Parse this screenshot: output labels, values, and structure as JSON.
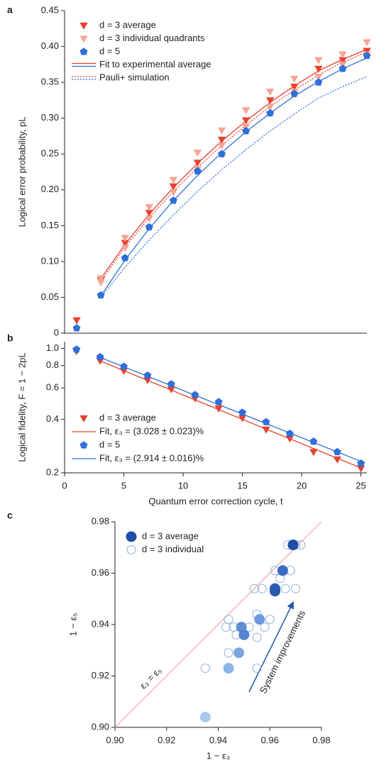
{
  "chart_data": [
    {
      "type": "line",
      "panel": "a",
      "ylabel": "Logical error probability, pL",
      "x": [
        1,
        3,
        5,
        7,
        9,
        11,
        13,
        15,
        17,
        19,
        21,
        23,
        25
      ],
      "xlim": [
        0,
        25
      ],
      "ylim": [
        0,
        0.45
      ],
      "yticks": [
        0,
        0.05,
        {
          "value": 0.1,
          "label": "0.10"
        },
        0.15,
        {
          "value": 0.2,
          "label": "0.20"
        },
        0.25,
        {
          "value": 0.3,
          "label": "0.30"
        },
        0.35,
        {
          "value": 0.4,
          "label": "0.40"
        },
        0.45
      ],
      "legend": "upper left",
      "series": [
        {
          "name": "d = 3 average",
          "color": "#e8402f",
          "marker": "triangle",
          "values": [
            0.018,
            0.074,
            0.126,
            0.168,
            0.205,
            0.238,
            0.27,
            0.297,
            0.325,
            0.344,
            0.369,
            0.381,
            0.394
          ]
        },
        {
          "name": "d = 3 individual quadrants",
          "color": "#f4a594",
          "marker": "triangle",
          "x": [
            3,
            3,
            5,
            5,
            7,
            7,
            9,
            9,
            11,
            11,
            13,
            13,
            15,
            15,
            17,
            17,
            19,
            19,
            21,
            21,
            23,
            23,
            25,
            25
          ],
          "values": [
            0.077,
            0.071,
            0.133,
            0.119,
            0.176,
            0.16,
            0.214,
            0.197,
            0.252,
            0.229,
            0.283,
            0.262,
            0.311,
            0.288,
            0.337,
            0.316,
            0.355,
            0.337,
            0.381,
            0.358,
            0.389,
            0.375,
            0.406,
            0.389
          ]
        },
        {
          "name": "d = 5",
          "color": "#2f6fd8",
          "marker": "pentagon",
          "values": [
            0.007,
            0.053,
            0.105,
            0.148,
            0.185,
            0.226,
            0.25,
            0.282,
            0.307,
            0.334,
            0.35,
            0.369,
            0.387
          ]
        }
      ],
      "fits": [
        {
          "name": "Fit to experimental average",
          "line_style": "solid",
          "x": [
            3,
            5,
            7,
            9,
            11,
            13,
            15,
            17,
            19,
            21,
            23,
            25
          ],
          "lines": [
            {
              "color": "#e8402f",
              "values": [
                0.076,
                0.124,
                0.166,
                0.203,
                0.237,
                0.268,
                0.296,
                0.322,
                0.345,
                0.366,
                0.382,
                0.396
              ]
            },
            {
              "color": "#2f6fd8",
              "values": [
                0.052,
                0.102,
                0.146,
                0.185,
                0.22,
                0.252,
                0.281,
                0.307,
                0.331,
                0.351,
                0.369,
                0.384
              ]
            }
          ]
        },
        {
          "name": "Pauli+ simulation",
          "line_style": "dotted",
          "x": [
            3,
            5,
            7,
            9,
            11,
            13,
            15,
            17,
            19,
            21,
            23,
            25
          ],
          "lines": [
            {
              "color": "#e8402f",
              "values": [
                0.072,
                0.12,
                0.161,
                0.198,
                0.231,
                0.262,
                0.29,
                0.316,
                0.339,
                0.36,
                0.378,
                0.392
              ]
            },
            {
              "color": "#2f6fd8",
              "values": [
                0.05,
                0.092,
                0.13,
                0.165,
                0.198,
                0.228,
                0.256,
                0.282,
                0.306,
                0.328,
                0.344,
                0.358
              ]
            }
          ]
        }
      ]
    },
    {
      "type": "line",
      "panel": "b",
      "ylabel": "Logical fidelity, F = 1 − 2pL",
      "xlabel": "Quantum error correction cycle, t",
      "x": [
        1,
        3,
        5,
        7,
        9,
        11,
        13,
        15,
        17,
        19,
        21,
        23,
        25
      ],
      "xlim": [
        0,
        25.5
      ],
      "xticks": [
        0,
        5,
        10,
        15,
        20,
        25
      ],
      "ylim": [
        0.2,
        1.09
      ],
      "log_y": true,
      "yticks": [
        0.2,
        0.4,
        0.6,
        0.8,
        {
          "value": 1.0,
          "label": "1.0"
        }
      ],
      "legend": "lower left",
      "series": [
        {
          "name": "d = 3 average",
          "color": "#e8402f",
          "marker": "triangle",
          "values": [
            0.964,
            0.852,
            0.748,
            0.664,
            0.59,
            0.524,
            0.46,
            0.406,
            0.35,
            0.312,
            0.262,
            0.238,
            0.212
          ]
        },
        {
          "name": "Fit, ε₃ = (3.028 ± 0.023)%",
          "color": "#e8402f",
          "line_style": "solid",
          "x": [
            3,
            25
          ],
          "values": [
            0.85,
            0.213
          ]
        },
        {
          "name": "d = 5",
          "color": "#2f6fd8",
          "marker": "pentagon",
          "values": [
            0.986,
            0.894,
            0.79,
            0.704,
            0.63,
            0.548,
            0.5,
            0.436,
            0.386,
            0.332,
            0.3,
            0.262,
            0.226
          ]
        },
        {
          "name": "Fit, ε₃ = (2.914 ± 0.016)%",
          "color": "#2f6fd8",
          "line_style": "solid",
          "x": [
            3,
            25
          ],
          "values": [
            0.89,
            0.232
          ]
        }
      ]
    },
    {
      "type": "scatter",
      "panel": "c",
      "xlabel": "1 − ε₃",
      "ylabel": "1 − ε₅",
      "xlim": [
        0.9,
        0.98
      ],
      "ylim": [
        0.9,
        0.98
      ],
      "xticks": [
        {
          "value": 0.9,
          "label": "0.90"
        },
        0.92,
        0.94,
        0.96,
        0.98
      ],
      "yticks": [
        {
          "value": 0.9,
          "label": "0.90"
        },
        0.92,
        0.94,
        0.96,
        0.98
      ],
      "legend": "upper left",
      "identity_line": true,
      "annotations": {
        "identity_label": "ε₃ = ε₅",
        "arrow_label": "System improvements"
      },
      "series": [
        {
          "name": "d = 3 average",
          "color": "#1f4ea8",
          "marker": "circle",
          "colors": [
            "#a8c8f0",
            "#8ab4ea",
            "#7aa6e2",
            "#5d8ed6",
            "#5386d2",
            "#6b9ade",
            "#2c5db5",
            "#2a58ae",
            "#3a6cc4",
            "#1f4ea8"
          ],
          "x": [
            0.935,
            0.944,
            0.948,
            0.949,
            0.95,
            0.956,
            0.962,
            0.962,
            0.965,
            0.969
          ],
          "values": [
            0.904,
            0.923,
            0.929,
            0.939,
            0.936,
            0.942,
            0.954,
            0.953,
            0.961,
            0.971
          ]
        },
        {
          "name": "d = 3 individual",
          "color": "#8fb0e0",
          "marker": "circle",
          "filled": false,
          "x": [
            0.935,
            0.944,
            0.947,
            0.955,
            0.946,
            0.952,
            0.955,
            0.958,
            0.96,
            0.955,
            0.954,
            0.957,
            0.962,
            0.966,
            0.97,
            0.962,
            0.964,
            0.968,
            0.967,
            0.97,
            0.972,
            0.949,
            0.944,
            0.943
          ],
          "values": [
            0.923,
            0.929,
            0.936,
            0.923,
            0.939,
            0.939,
            0.935,
            0.939,
            0.942,
            0.944,
            0.954,
            0.954,
            0.954,
            0.954,
            0.954,
            0.961,
            0.958,
            0.961,
            0.971,
            0.971,
            0.971,
            0.939,
            0.942,
            0.939
          ]
        }
      ]
    }
  ]
}
